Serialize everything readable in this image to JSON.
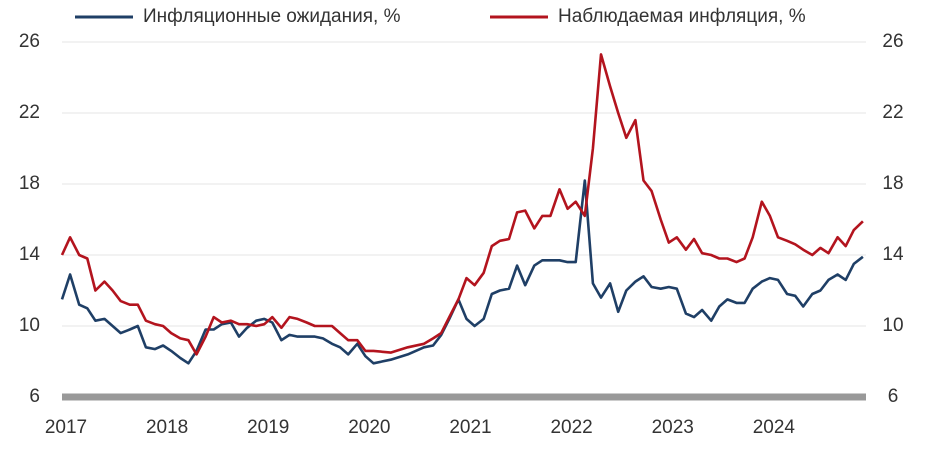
{
  "chart_data": {
    "type": "line",
    "x": [
      2017.0,
      2017.08,
      2017.17,
      2017.25,
      2017.33,
      2017.42,
      2017.5,
      2017.58,
      2017.67,
      2017.75,
      2017.83,
      2017.92,
      2018.0,
      2018.08,
      2018.17,
      2018.25,
      2018.33,
      2018.42,
      2018.5,
      2018.58,
      2018.67,
      2018.75,
      2018.83,
      2018.92,
      2019.0,
      2019.08,
      2019.17,
      2019.25,
      2019.33,
      2019.42,
      2019.5,
      2019.58,
      2019.67,
      2019.75,
      2019.83,
      2019.92,
      2020.0,
      2020.08,
      2020.25,
      2020.42,
      2020.58,
      2020.67,
      2020.75,
      2020.83,
      2020.92,
      2021.0,
      2021.08,
      2021.17,
      2021.25,
      2021.33,
      2021.42,
      2021.5,
      2021.58,
      2021.67,
      2021.75,
      2021.83,
      2021.92,
      2022.0,
      2022.08,
      2022.17,
      2022.25,
      2022.33,
      2022.42,
      2022.5,
      2022.58,
      2022.67,
      2022.75,
      2022.83,
      2022.92,
      2023.0,
      2023.08,
      2023.17,
      2023.25,
      2023.33,
      2023.42,
      2023.5,
      2023.58,
      2023.67,
      2023.75,
      2023.83,
      2023.92,
      2024.0,
      2024.08,
      2024.17,
      2024.25,
      2024.33,
      2024.42,
      2024.5,
      2024.58,
      2024.67,
      2024.75,
      2024.83,
      2024.92
    ],
    "series": [
      {
        "name": "Инфляционные ожидания, %",
        "color": "#1f3f66",
        "values": [
          11.5,
          12.9,
          11.2,
          11.0,
          10.3,
          10.4,
          10.0,
          9.6,
          9.8,
          10.0,
          8.8,
          8.7,
          8.9,
          8.6,
          8.2,
          7.9,
          8.6,
          9.8,
          9.8,
          10.1,
          10.2,
          9.4,
          9.9,
          10.3,
          10.4,
          10.2,
          9.2,
          9.5,
          9.4,
          9.4,
          9.4,
          9.3,
          9.0,
          8.8,
          8.4,
          9.0,
          8.3,
          7.9,
          8.1,
          8.4,
          8.8,
          8.9,
          9.5,
          10.4,
          11.5,
          10.4,
          10.0,
          10.4,
          11.8,
          12.0,
          12.1,
          13.4,
          12.3,
          13.4,
          13.7,
          13.7,
          13.7,
          13.6,
          13.6,
          18.2,
          12.4,
          11.6,
          12.4,
          10.8,
          12.0,
          12.5,
          12.8,
          12.2,
          12.1,
          12.2,
          12.1,
          10.7,
          10.5,
          10.9,
          10.3,
          11.1,
          11.5,
          11.3,
          11.3,
          12.1,
          12.5,
          12.7,
          12.6,
          11.8,
          11.7,
          11.1,
          11.8,
          12.0,
          12.6,
          12.9,
          12.6,
          13.5,
          13.9
        ]
      },
      {
        "name": "Наблюдаемая инфляция, %",
        "color": "#b3141e",
        "values": [
          14.0,
          15.0,
          14.0,
          13.8,
          12.0,
          12.5,
          12.0,
          11.4,
          11.2,
          11.2,
          10.3,
          10.1,
          10.0,
          9.6,
          9.3,
          9.2,
          8.4,
          9.4,
          10.5,
          10.2,
          10.3,
          10.1,
          10.1,
          10.0,
          10.1,
          10.5,
          9.9,
          10.5,
          10.4,
          10.2,
          10.0,
          10.0,
          10.0,
          9.6,
          9.2,
          9.2,
          8.6,
          8.6,
          8.5,
          8.8,
          9.0,
          9.3,
          9.6,
          10.5,
          11.5,
          12.7,
          12.3,
          13.0,
          14.5,
          14.8,
          14.9,
          16.4,
          16.5,
          15.5,
          16.2,
          16.2,
          17.7,
          16.6,
          17.0,
          16.2,
          20.0,
          25.3,
          23.5,
          22.0,
          20.6,
          21.6,
          18.2,
          17.6,
          16.0,
          14.7,
          15.0,
          14.3,
          14.9,
          14.1,
          14.0,
          13.8,
          13.8,
          13.6,
          13.8,
          15.0,
          17.0,
          16.2,
          15.0,
          14.8,
          14.6,
          14.3,
          14.0,
          14.4,
          14.1,
          15.0,
          14.5,
          15.4,
          15.9
        ]
      }
    ],
    "xlim": [
      2017,
      2025
    ],
    "xticks": [
      2017,
      2018,
      2019,
      2020,
      2021,
      2022,
      2023,
      2024
    ],
    "ylim": [
      6,
      26
    ],
    "yticks": [
      6,
      10,
      14,
      18,
      22,
      26
    ],
    "y2lim": [
      6,
      26
    ],
    "y2ticks": [
      6,
      10,
      14,
      18,
      22,
      26
    ],
    "grid": true,
    "legend": "top"
  }
}
